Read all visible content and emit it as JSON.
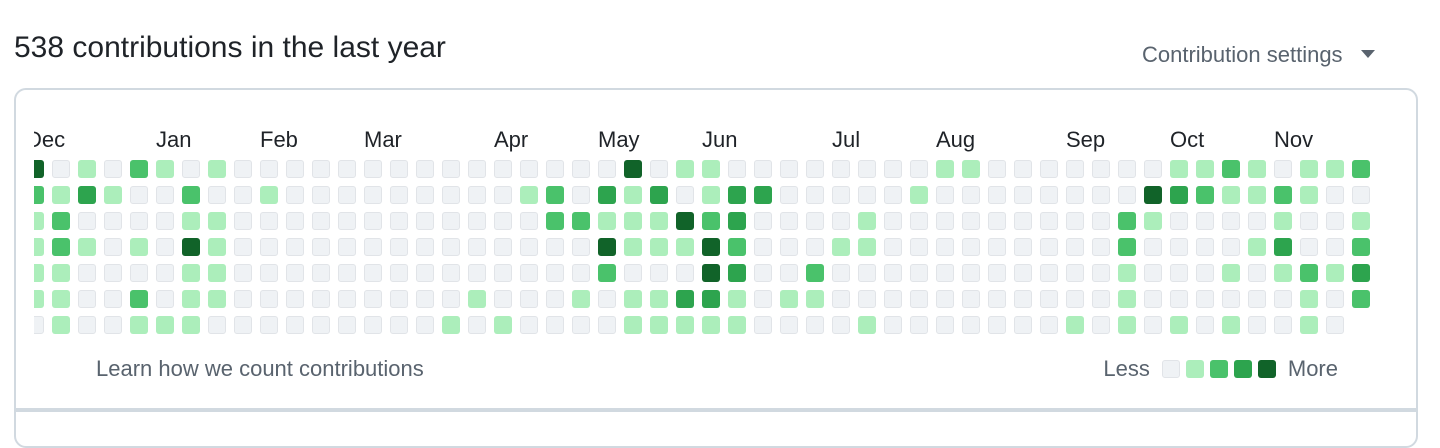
{
  "header": {
    "title": "538 contributions in the last year",
    "settings_label": "Contribution settings"
  },
  "graph": {
    "months": [
      {
        "label": "Dec",
        "week": 0
      },
      {
        "label": "Jan",
        "week": 5
      },
      {
        "label": "Feb",
        "week": 9
      },
      {
        "label": "Mar",
        "week": 13
      },
      {
        "label": "Apr",
        "week": 18
      },
      {
        "label": "May",
        "week": 22
      },
      {
        "label": "Jun",
        "week": 26
      },
      {
        "label": "Jul",
        "week": 31
      },
      {
        "label": "Aug",
        "week": 35
      },
      {
        "label": "Sep",
        "week": 40
      },
      {
        "label": "Oct",
        "week": 44
      },
      {
        "label": "Nov",
        "week": 48
      }
    ],
    "levels_by_day": [
      "4010210100000000000000040110000000011000000011210112",
      "2131002001000000000120313013300000100000000432112100",
      "1200001100000000000022111423000010000000002100001001",
      "1210104100000000000000411142000110000000002000013002",
      "1100001100000000000000200043002000000000001000101213",
      "1100201100000000010001011331011000000000001000000102",
      "010011100000000010100001111100001000000010101010010"
    ],
    "level_colors": [
      "#eff2f5",
      "#aceebb",
      "#4ac26b",
      "#2da44e",
      "#116329"
    ]
  },
  "footer": {
    "learn_link": "Learn how we count contributions",
    "legend_less": "Less",
    "legend_more": "More"
  }
}
